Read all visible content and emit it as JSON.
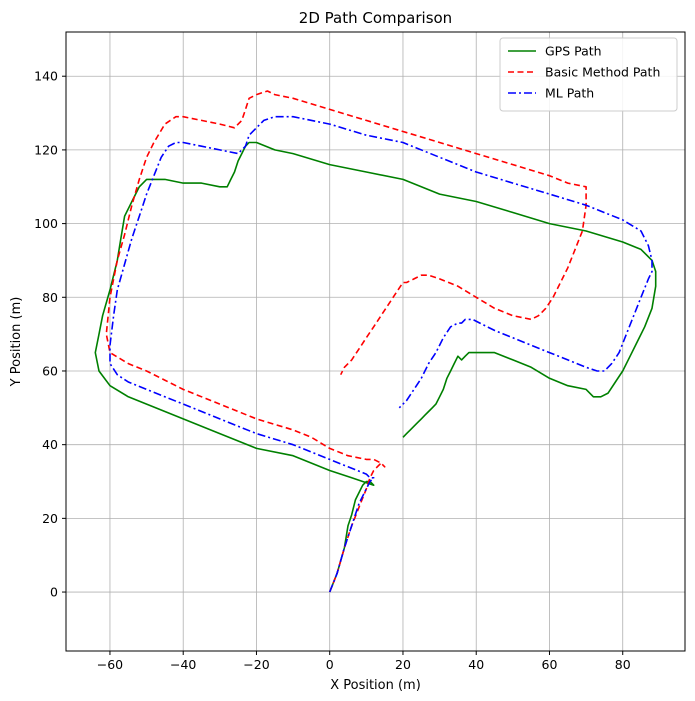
{
  "chart_data": {
    "type": "line",
    "title": "2D Path Comparison",
    "xlabel": "X Position (m)",
    "ylabel": "Y Position (m)",
    "xlim": [
      -72,
      97
    ],
    "ylim": [
      -16,
      152
    ],
    "xticks": [
      -60,
      -40,
      -20,
      0,
      20,
      40,
      60,
      80
    ],
    "yticks": [
      0,
      20,
      40,
      60,
      80,
      100,
      120,
      140
    ],
    "grid": true,
    "legend_position": "top-right",
    "series": [
      {
        "name": "GPS Path",
        "color": "#008000",
        "style": "solid",
        "x": [
          0,
          2,
          4,
          5,
          6,
          7,
          8,
          9,
          10,
          11,
          12,
          9,
          6,
          0,
          -5,
          -10,
          -20,
          -30,
          -40,
          -50,
          -55,
          -60,
          -63,
          -64,
          -63,
          -62,
          -60,
          -58,
          -57,
          -56,
          -54,
          -53,
          -52,
          -50,
          -45,
          -40,
          -35,
          -30,
          -28,
          -27,
          -26,
          -25,
          -24,
          -23,
          -22,
          -20,
          -15,
          -10,
          0,
          10,
          20,
          30,
          40,
          50,
          60,
          70,
          80,
          85,
          88,
          89,
          89,
          88,
          86,
          84,
          82,
          80,
          78,
          76,
          74,
          72,
          70,
          65,
          60,
          55,
          50,
          45,
          40,
          38,
          37,
          36,
          35,
          34,
          33,
          32,
          31,
          30,
          29,
          28,
          27,
          26,
          25,
          24,
          23,
          22,
          21,
          20
        ],
        "y": [
          0,
          5,
          12,
          18,
          21,
          25,
          27,
          29,
          30,
          30,
          29,
          30,
          31,
          33,
          35,
          37,
          39,
          43,
          47,
          51,
          53,
          56,
          60,
          65,
          70,
          75,
          82,
          90,
          96,
          102,
          106,
          108,
          110,
          112,
          112,
          111,
          111,
          110,
          110,
          112,
          114,
          117,
          119,
          121,
          122,
          122,
          120,
          119,
          116,
          114,
          112,
          108,
          106,
          103,
          100,
          98,
          95,
          93,
          90,
          87,
          83,
          77,
          72,
          68,
          64,
          60,
          57,
          54,
          53,
          53,
          55,
          56,
          58,
          61,
          63,
          65,
          65,
          65,
          64,
          63,
          64,
          62,
          60,
          58,
          55,
          53,
          51,
          50,
          49,
          48,
          47,
          46,
          45,
          44,
          43,
          42
        ]
      },
      {
        "name": "Basic Method Path",
        "color": "#ff0000",
        "style": "dashed",
        "x": [
          0,
          2,
          4,
          6,
          8,
          10,
          11,
          12,
          13,
          14,
          15,
          14,
          12,
          10,
          5,
          0,
          -5,
          -10,
          -20,
          -30,
          -40,
          -50,
          -55,
          -60,
          -61,
          -60,
          -58,
          -56,
          -54,
          -52,
          -50,
          -48,
          -45,
          -42,
          -40,
          -35,
          -30,
          -26,
          -24,
          -23,
          -22,
          -20,
          -17,
          -15,
          -10,
          0,
          10,
          20,
          30,
          40,
          50,
          60,
          65,
          70,
          70,
          69,
          67,
          65,
          63,
          61,
          59,
          57,
          55,
          50,
          45,
          40,
          35,
          30,
          27,
          25,
          23,
          21,
          20,
          18,
          16,
          14,
          12,
          10,
          8,
          6,
          4,
          3
        ],
        "y": [
          0,
          5,
          12,
          18,
          23,
          28,
          31,
          33,
          34,
          35,
          34,
          35,
          36,
          36,
          37,
          39,
          42,
          44,
          47,
          51,
          55,
          60,
          62,
          65,
          70,
          80,
          90,
          97,
          105,
          112,
          118,
          122,
          127,
          129,
          129,
          128,
          127,
          126,
          128,
          131,
          134,
          135,
          136,
          135,
          134,
          131,
          128,
          125,
          122,
          119,
          116,
          113,
          111,
          110,
          105,
          98,
          93,
          88,
          84,
          80,
          77,
          75,
          74,
          75,
          77,
          80,
          83,
          85,
          86,
          86,
          85,
          84,
          84,
          81,
          78,
          75,
          72,
          69,
          66,
          63,
          61,
          59
        ]
      },
      {
        "name": "ML Path",
        "color": "#0000ff",
        "style": "dashdot",
        "x": [
          0,
          2,
          4,
          6,
          8,
          10,
          11,
          12,
          11,
          10,
          5,
          0,
          -5,
          -10,
          -20,
          -30,
          -40,
          -50,
          -55,
          -58,
          -60,
          -60,
          -59,
          -58,
          -56,
          -54,
          -52,
          -50,
          -48,
          -46,
          -44,
          -42,
          -40,
          -35,
          -30,
          -25,
          -23,
          -22,
          -20,
          -18,
          -15,
          -10,
          0,
          10,
          20,
          30,
          40,
          50,
          60,
          70,
          80,
          85,
          87,
          88,
          88,
          87,
          85,
          83,
          81,
          79,
          77,
          75,
          73,
          70,
          65,
          60,
          55,
          50,
          45,
          43,
          41,
          39,
          38,
          37,
          36,
          35,
          33,
          31,
          29,
          27,
          25,
          23,
          21,
          19
        ],
        "y": [
          0,
          5,
          12,
          18,
          24,
          28,
          30,
          31,
          31,
          32,
          34,
          36,
          38,
          40,
          43,
          47,
          51,
          55,
          57,
          59,
          62,
          67,
          75,
          82,
          89,
          96,
          102,
          108,
          113,
          118,
          121,
          122,
          122,
          121,
          120,
          119,
          121,
          124,
          126,
          128,
          129,
          129,
          127,
          124,
          122,
          118,
          114,
          111,
          108,
          105,
          101,
          98,
          94,
          90,
          87,
          85,
          80,
          75,
          70,
          65,
          62,
          60,
          60,
          61,
          63,
          65,
          67,
          69,
          71,
          72,
          73,
          74,
          74,
          74,
          73,
          73,
          72,
          69,
          65,
          62,
          58,
          55,
          52,
          50
        ]
      }
    ]
  }
}
